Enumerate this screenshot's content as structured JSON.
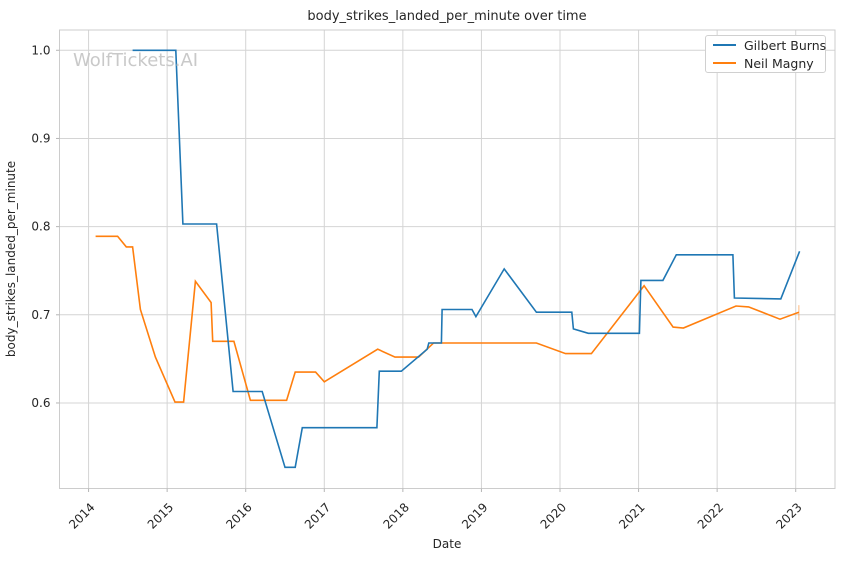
{
  "watermark": "WolfTickets.AI",
  "chart_data": {
    "type": "line",
    "title": "body_strikes_landed_per_minute over time",
    "xlabel": "Date",
    "ylabel": "body_strikes_landed_per_minute",
    "x_ticks": [
      2014,
      2015,
      2016,
      2017,
      2018,
      2019,
      2020,
      2021,
      2022,
      2023
    ],
    "x_tick_labels": [
      "2014",
      "2015",
      "2016",
      "2017",
      "2018",
      "2019",
      "2020",
      "2021",
      "2022",
      "2023"
    ],
    "y_ticks": [
      0.6,
      0.7,
      0.8,
      0.9,
      1.0
    ],
    "y_tick_labels": [
      "0.6",
      "0.7",
      "0.8",
      "0.9",
      "1.0"
    ],
    "xlim": [
      2013.63,
      2023.5
    ],
    "ylim": [
      0.503,
      1.023
    ],
    "grid": true,
    "legend": {
      "position": "upper right"
    },
    "colors": {
      "grid": "#d4d4d4",
      "spine": "#cccccc",
      "tick_mark": "#b5b5b5",
      "text": "#262626",
      "watermark": "#c9c9c9"
    },
    "series": [
      {
        "name": "Gilbert Burns",
        "color": "#1f77b4",
        "points": [
          [
            2014.56,
            1.0
          ],
          [
            2015.11,
            1.0
          ],
          [
            2015.2,
            0.803
          ],
          [
            2015.63,
            0.803
          ],
          [
            2015.84,
            0.613
          ],
          [
            2016.21,
            0.613
          ],
          [
            2016.5,
            0.527
          ],
          [
            2016.63,
            0.527
          ],
          [
            2016.72,
            0.572
          ],
          [
            2017.67,
            0.572
          ],
          [
            2017.7,
            0.636
          ],
          [
            2017.98,
            0.636
          ],
          [
            2018.31,
            0.661
          ],
          [
            2018.33,
            0.668
          ],
          [
            2018.49,
            0.668
          ],
          [
            2018.5,
            0.706
          ],
          [
            2018.88,
            0.706
          ],
          [
            2018.93,
            0.698
          ],
          [
            2019.29,
            0.752
          ],
          [
            2019.7,
            0.703
          ],
          [
            2020.15,
            0.703
          ],
          [
            2020.17,
            0.684
          ],
          [
            2020.36,
            0.679
          ],
          [
            2021.01,
            0.679
          ],
          [
            2021.03,
            0.739
          ],
          [
            2021.31,
            0.739
          ],
          [
            2021.48,
            0.768
          ],
          [
            2022.2,
            0.768
          ],
          [
            2022.22,
            0.719
          ],
          [
            2022.81,
            0.718
          ],
          [
            2023.05,
            0.772
          ]
        ]
      },
      {
        "name": "Neil Magny",
        "color": "#ff7f0e",
        "end_cap": [
          2023.04,
          0.703
        ],
        "points": [
          [
            2014.09,
            0.789
          ],
          [
            2014.37,
            0.789
          ],
          [
            2014.48,
            0.777
          ],
          [
            2014.56,
            0.777
          ],
          [
            2014.66,
            0.706
          ],
          [
            2014.85,
            0.652
          ],
          [
            2015.1,
            0.601
          ],
          [
            2015.21,
            0.601
          ],
          [
            2015.36,
            0.738
          ],
          [
            2015.56,
            0.714
          ],
          [
            2015.58,
            0.67
          ],
          [
            2015.85,
            0.67
          ],
          [
            2016.06,
            0.603
          ],
          [
            2016.52,
            0.603
          ],
          [
            2016.63,
            0.635
          ],
          [
            2016.89,
            0.635
          ],
          [
            2017.0,
            0.624
          ],
          [
            2017.68,
            0.661
          ],
          [
            2017.9,
            0.652
          ],
          [
            2018.2,
            0.652
          ],
          [
            2018.39,
            0.668
          ],
          [
            2019.7,
            0.668
          ],
          [
            2020.07,
            0.656
          ],
          [
            2020.4,
            0.656
          ],
          [
            2021.07,
            0.733
          ],
          [
            2021.44,
            0.686
          ],
          [
            2021.57,
            0.685
          ],
          [
            2022.24,
            0.71
          ],
          [
            2022.4,
            0.709
          ],
          [
            2022.8,
            0.695
          ],
          [
            2023.04,
            0.703
          ]
        ]
      }
    ]
  }
}
